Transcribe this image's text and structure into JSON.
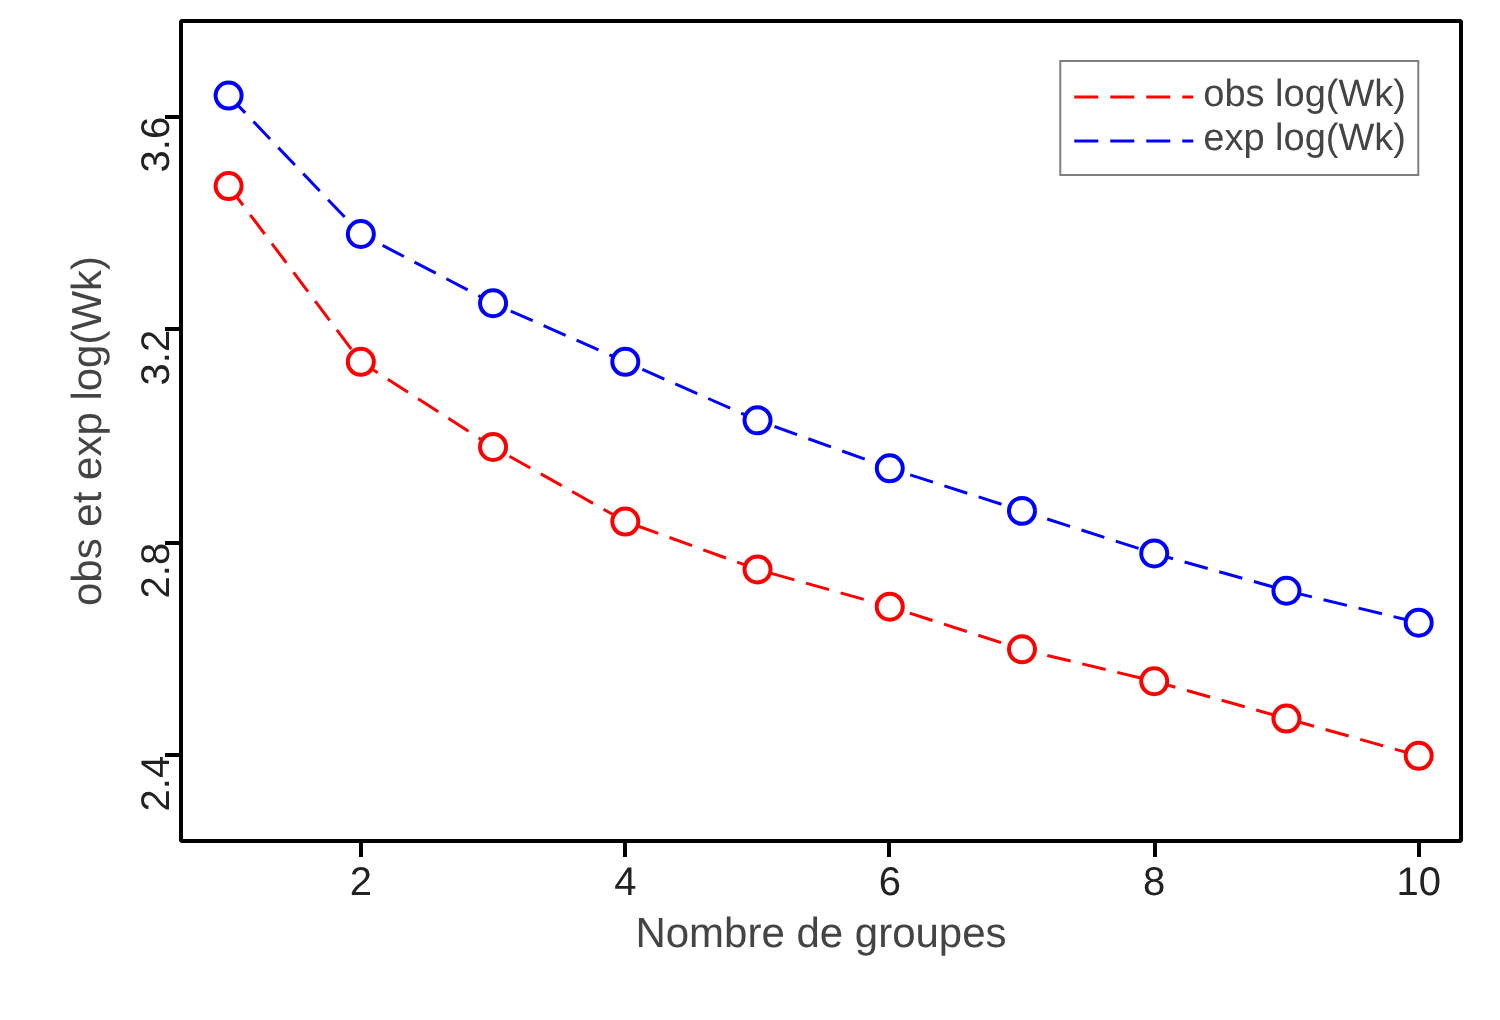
{
  "chart_data": {
    "type": "line",
    "xlabel": "Nombre de groupes",
    "ylabel": "obs et exp log(Wk)",
    "x": [
      1,
      2,
      3,
      4,
      5,
      6,
      7,
      8,
      9,
      10
    ],
    "series": [
      {
        "name": "obs log(Wk)",
        "color": "#ff0000",
        "values": [
          3.47,
          3.14,
          2.98,
          2.84,
          2.75,
          2.68,
          2.6,
          2.54,
          2.47,
          2.4
        ]
      },
      {
        "name": "exp log(Wk)",
        "color": "#0000ff",
        "values": [
          3.64,
          3.38,
          3.25,
          3.14,
          3.03,
          2.94,
          2.86,
          2.78,
          2.71,
          2.65
        ]
      }
    ],
    "xlim": [
      0.64,
      10.32
    ],
    "ylim": [
      2.24,
      3.78
    ],
    "xticks": [
      2,
      4,
      6,
      8,
      10
    ],
    "yticks": [
      2.4,
      2.8,
      3.2,
      3.6
    ],
    "grid": false,
    "legend": "top right",
    "marker": "circle",
    "line_style": "dashed"
  }
}
